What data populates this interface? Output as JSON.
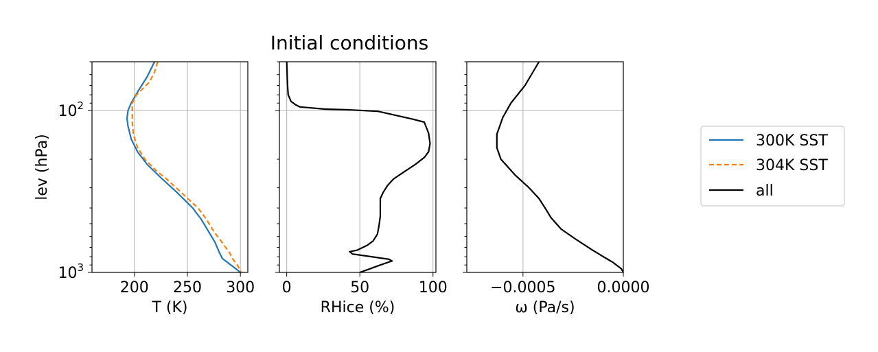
{
  "title": "Initial conditions",
  "colors": {
    "series_300K": "#1f77b4",
    "series_304K": "#ff7f0e",
    "series_all": "#000000",
    "grid": "#b0b0b0",
    "legend_border": "#cccccc"
  },
  "legend": {
    "placement": "right",
    "entries": [
      {
        "label": "300K SST",
        "color": "#1f77b4",
        "style": "solid"
      },
      {
        "label": "304K SST",
        "color": "#ff7f0e",
        "style": "dashed"
      },
      {
        "label": "all",
        "color": "#000000",
        "style": "solid"
      }
    ]
  },
  "chart_data": [
    {
      "type": "line",
      "xlabel": "T (K)",
      "ylabel": "lev (hPa)",
      "xlim": [
        160,
        307
      ],
      "ylim": [
        1000,
        50
      ],
      "yscale": "log",
      "grid": true,
      "xticks": [
        {
          "v": 200,
          "label": "200"
        },
        {
          "v": 250,
          "label": "250"
        },
        {
          "v": 300,
          "label": "300"
        }
      ],
      "yticks": [
        {
          "v": 100,
          "label": "10",
          "sup": "2"
        },
        {
          "v": 1000,
          "label": "10",
          "sup": "3"
        }
      ],
      "series": [
        {
          "name": "300K SST",
          "color": "#1f77b4",
          "style": "solid",
          "points": [
            [
              219,
              50
            ],
            [
              212,
              62
            ],
            [
              204,
              75
            ],
            [
              197,
              90
            ],
            [
              194,
              100
            ],
            [
              193,
              112
            ],
            [
              194,
              125
            ],
            [
              197,
              150
            ],
            [
              203,
              180
            ],
            [
              212,
              215
            ],
            [
              225,
              260
            ],
            [
              240,
              320
            ],
            [
              255,
              400
            ],
            [
              263,
              470
            ],
            [
              270,
              560
            ],
            [
              276,
              650
            ],
            [
              280,
              750
            ],
            [
              283,
              820
            ],
            [
              289,
              880
            ],
            [
              294,
              930
            ],
            [
              300,
              1000
            ]
          ]
        },
        {
          "name": "304K SST",
          "color": "#ff7f0e",
          "style": "dashed",
          "points": [
            [
              222,
              50
            ],
            [
              219,
              58
            ],
            [
              214,
              67
            ],
            [
              209,
              72
            ],
            [
              202,
              80
            ],
            [
              198,
              90
            ],
            [
              198,
              100
            ],
            [
              198,
              118
            ],
            [
              199,
              140
            ],
            [
              203,
              170
            ],
            [
              210,
              200
            ],
            [
              222,
              240
            ],
            [
              229,
              260
            ],
            [
              244,
              320
            ],
            [
              260,
              400
            ],
            [
              268,
              470
            ],
            [
              275,
              560
            ],
            [
              281,
              630
            ],
            [
              286,
              700
            ],
            [
              290,
              760
            ],
            [
              293,
              830
            ],
            [
              297,
              900
            ],
            [
              301,
              1000
            ]
          ]
        }
      ]
    },
    {
      "type": "line",
      "xlabel": "RHice (%)",
      "xlim": [
        -5,
        102
      ],
      "ylim": [
        1000,
        50
      ],
      "yscale": "log",
      "grid": true,
      "xticks": [
        {
          "v": 0,
          "label": "0"
        },
        {
          "v": 50,
          "label": "50"
        },
        {
          "v": 100,
          "label": "100"
        }
      ],
      "series": [
        {
          "name": "all",
          "color": "#000000",
          "style": "solid",
          "points": [
            [
              0,
              50
            ],
            [
              0.3,
              60
            ],
            [
              0.6,
              70
            ],
            [
              1,
              80
            ],
            [
              3,
              88
            ],
            [
              6,
              92
            ],
            [
              9,
              95
            ],
            [
              26,
              98
            ],
            [
              42,
              99
            ],
            [
              62,
              101
            ],
            [
              86,
              113
            ],
            [
              94,
              118
            ],
            [
              97,
              138
            ],
            [
              98,
              160
            ],
            [
              97,
              180
            ],
            [
              94,
              195
            ],
            [
              88,
              215
            ],
            [
              80,
              240
            ],
            [
              73,
              265
            ],
            [
              69,
              290
            ],
            [
              66,
              320
            ],
            [
              64,
              350
            ],
            [
              64,
              400
            ],
            [
              64,
              450
            ],
            [
              63,
              520
            ],
            [
              62,
              580
            ],
            [
              59,
              640
            ],
            [
              55,
              680
            ],
            [
              48,
              730
            ],
            [
              43,
              745
            ],
            [
              45,
              770
            ],
            [
              58,
              800
            ],
            [
              70,
              830
            ],
            [
              72,
              850
            ],
            [
              64,
              900
            ],
            [
              57,
              950
            ],
            [
              50,
              1000
            ]
          ]
        }
      ]
    },
    {
      "type": "line",
      "xlabel": "ω (Pa/s)",
      "xlim": [
        -0.00078,
        0
      ],
      "ylim": [
        1000,
        50
      ],
      "yscale": "log",
      "grid": true,
      "xticks": [
        {
          "v": -0.0005,
          "label": "−0.0005"
        },
        {
          "v": 0,
          "label": "0.0000"
        }
      ],
      "series": [
        {
          "name": "all",
          "color": "#000000",
          "style": "solid",
          "points": [
            [
              -0.00042,
              50
            ],
            [
              -0.00049,
              70
            ],
            [
              -0.00056,
              90
            ],
            [
              -0.0006,
              110
            ],
            [
              -0.00063,
              140
            ],
            [
              -0.00063,
              170
            ],
            [
              -0.00061,
              200
            ],
            [
              -0.00054,
              250
            ],
            [
              -0.00047,
              300
            ],
            [
              -0.00042,
              350
            ],
            [
              -0.00039,
              400
            ],
            [
              -0.00036,
              460
            ],
            [
              -0.00031,
              540
            ],
            [
              -0.00024,
              620
            ],
            [
              -0.00016,
              720
            ],
            [
              -0.0001,
              800
            ],
            [
              -5e-05,
              870
            ],
            [
              -1e-05,
              950
            ],
            [
              0,
              1000
            ]
          ]
        }
      ]
    }
  ]
}
